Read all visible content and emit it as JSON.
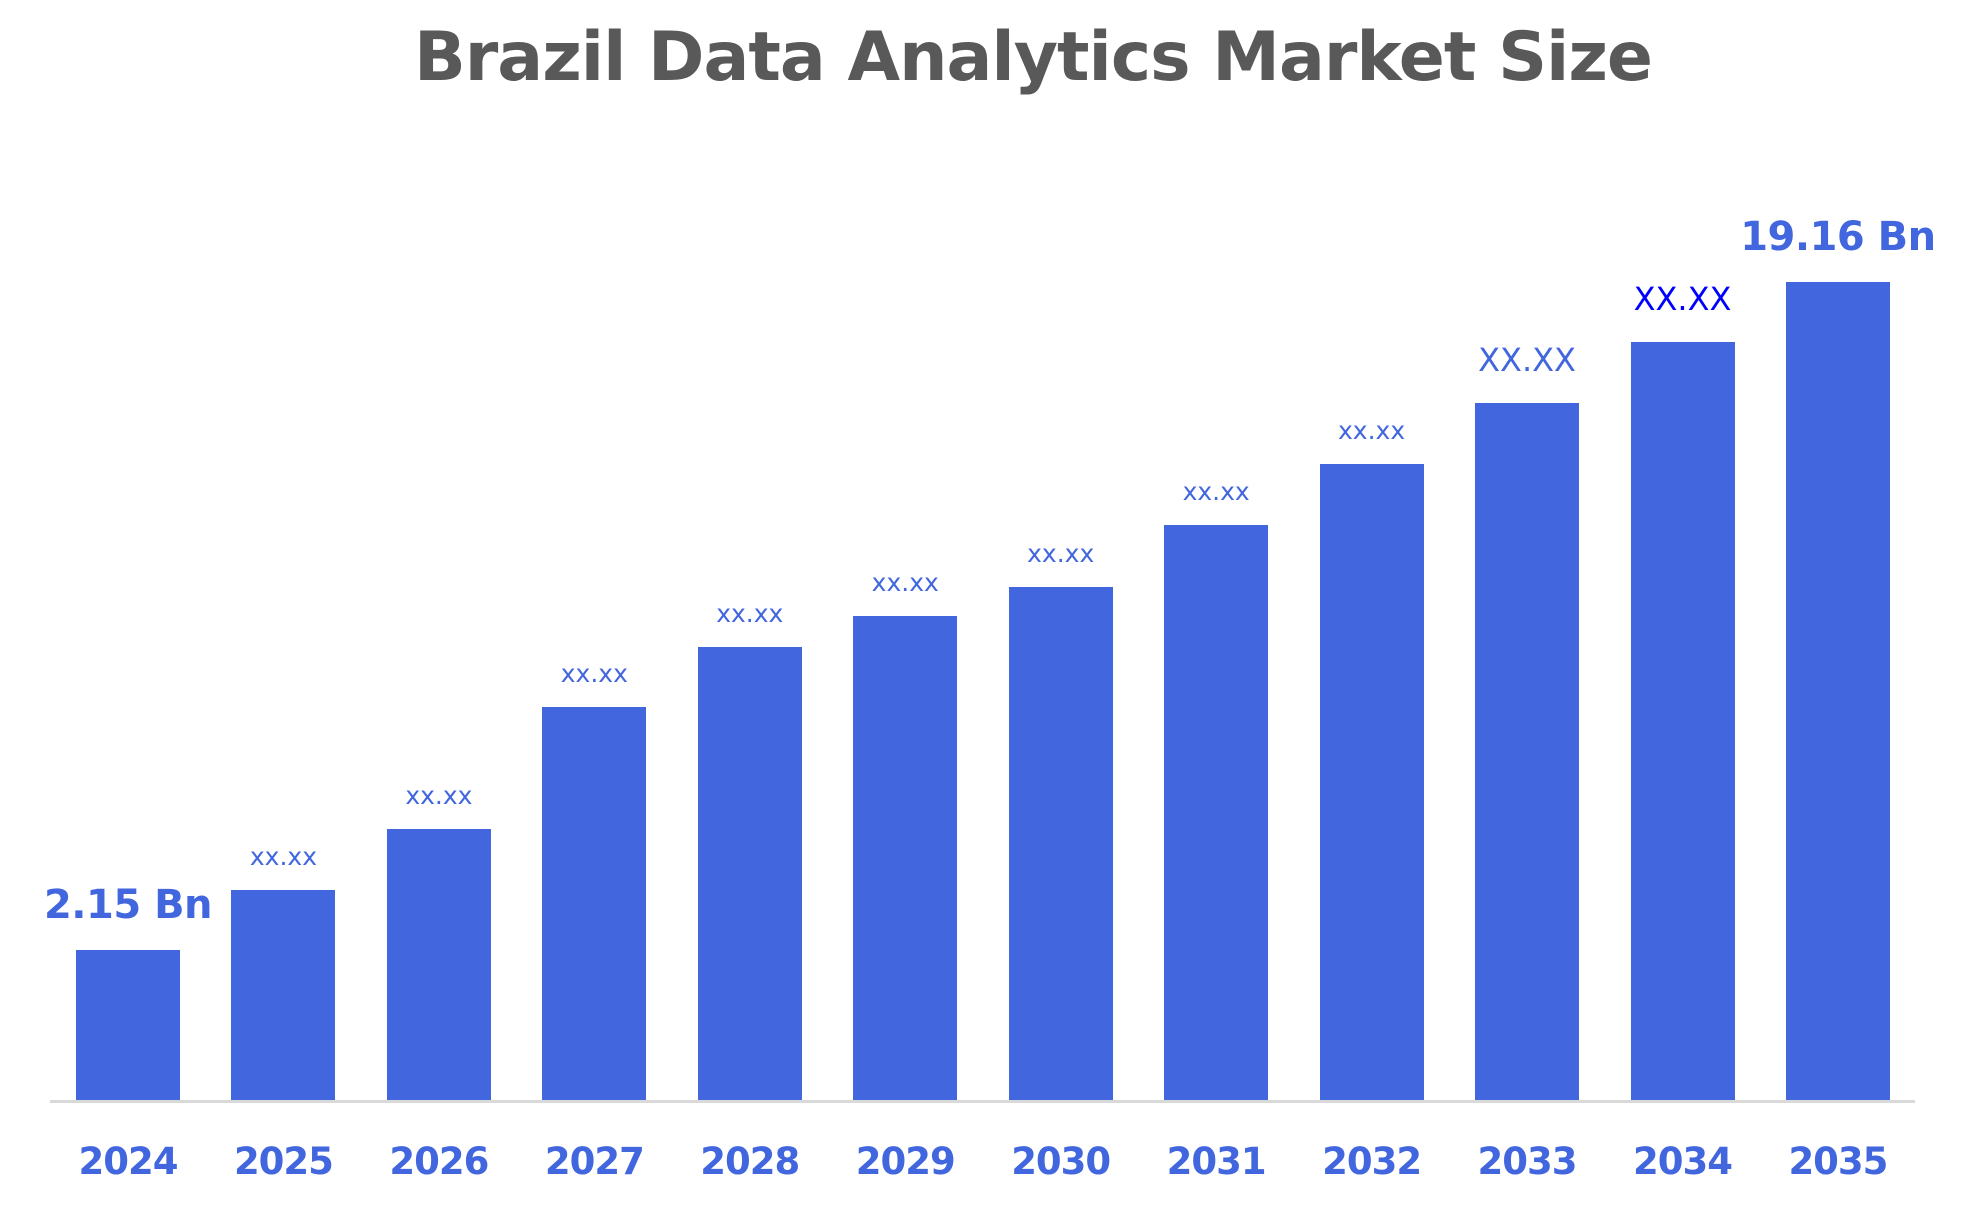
{
  "chart_data": {
    "type": "bar",
    "title": "Brazil Data Analytics Market Size",
    "xlabel": "",
    "ylabel": "",
    "categories": [
      "2024",
      "2025",
      "2026",
      "2027",
      "2028",
      "2029",
      "2030",
      "2031",
      "2032",
      "2033",
      "2034",
      "2035"
    ],
    "values": [
      2.15,
      3.68,
      5.23,
      8.34,
      9.86,
      10.65,
      11.39,
      12.97,
      14.52,
      16.08,
      17.63,
      19.16
    ],
    "value_labels": [
      "2.15 Bn",
      "xx.xx",
      "xx.xx",
      "xx.xx",
      "xx.xx",
      "xx.xx",
      "xx.xx",
      "xx.xx",
      "xx.xx",
      "XX.XX",
      "XX.XX",
      "19.16 Bn"
    ],
    "label_styles": [
      "big",
      "small",
      "small",
      "small",
      "small",
      "small",
      "small",
      "small",
      "small",
      "medium",
      "medium",
      "big"
    ],
    "label_colors": [
      "#4166de",
      "#4166de",
      "#4166de",
      "#4166de",
      "#4166de",
      "#4166de",
      "#4166de",
      "#4166de",
      "#4166de",
      "#4166de",
      "#0000ff",
      "#4166de"
    ],
    "unit": "Bn",
    "bar_color": "#4166de",
    "title_color": "#595959",
    "axis_color": "#d9d9d9",
    "grid": false,
    "legend": "none",
    "y_axis_visible": false
  }
}
